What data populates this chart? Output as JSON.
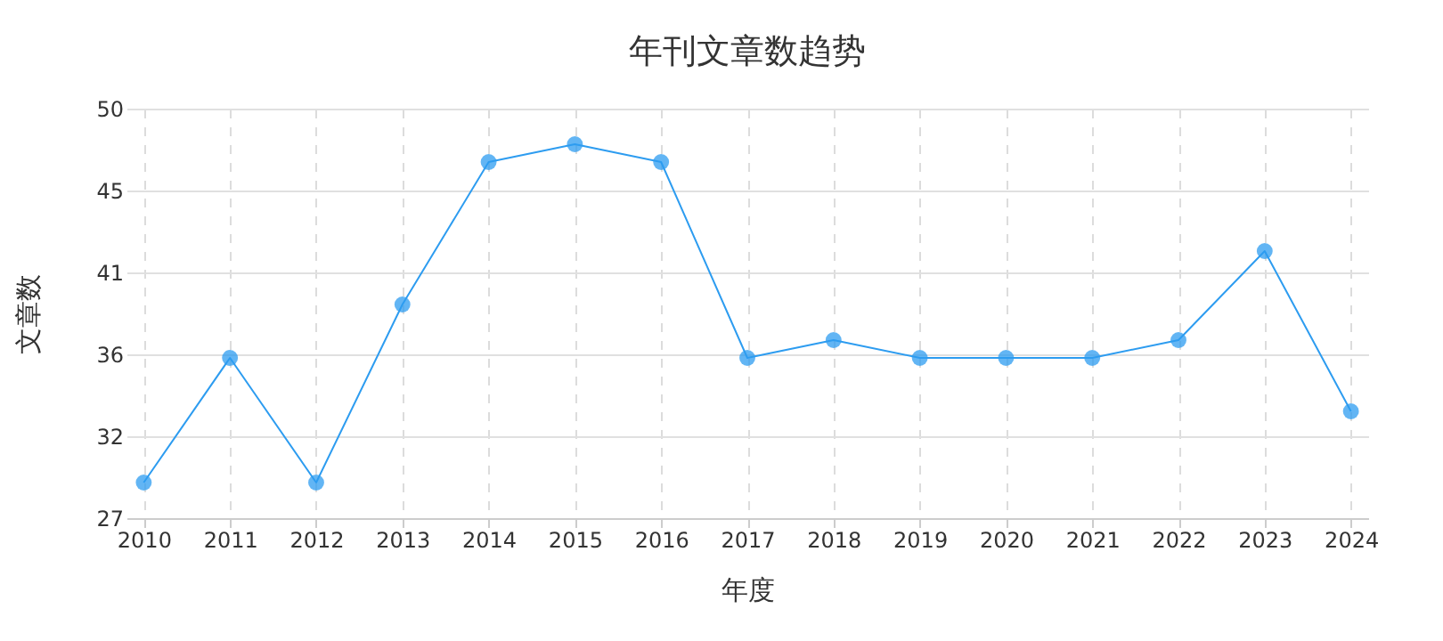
{
  "chart_data": {
    "type": "line",
    "title": "年刊文章数趋势",
    "xlabel": "年度",
    "ylabel": "文章数",
    "categories": [
      "2010",
      "2011",
      "2012",
      "2013",
      "2014",
      "2015",
      "2016",
      "2017",
      "2018",
      "2019",
      "2020",
      "2021",
      "2022",
      "2023",
      "2024"
    ],
    "series": [
      {
        "color": "#2d9cf0",
        "values": [
          29,
          36,
          29,
          39,
          47,
          48,
          47,
          36,
          37,
          36,
          36,
          36,
          37,
          42,
          33
        ]
      }
    ],
    "ylim": [
      27,
      50
    ],
    "yticks": [
      27,
      {
        "value": 31.6,
        "label": "32"
      },
      {
        "value": 36.2,
        "label": "36"
      },
      {
        "value": 40.8,
        "label": "41"
      },
      {
        "value": 45.4,
        "label": "45"
      },
      50
    ],
    "grid": true,
    "marker": "circle",
    "line_style": "solid"
  }
}
